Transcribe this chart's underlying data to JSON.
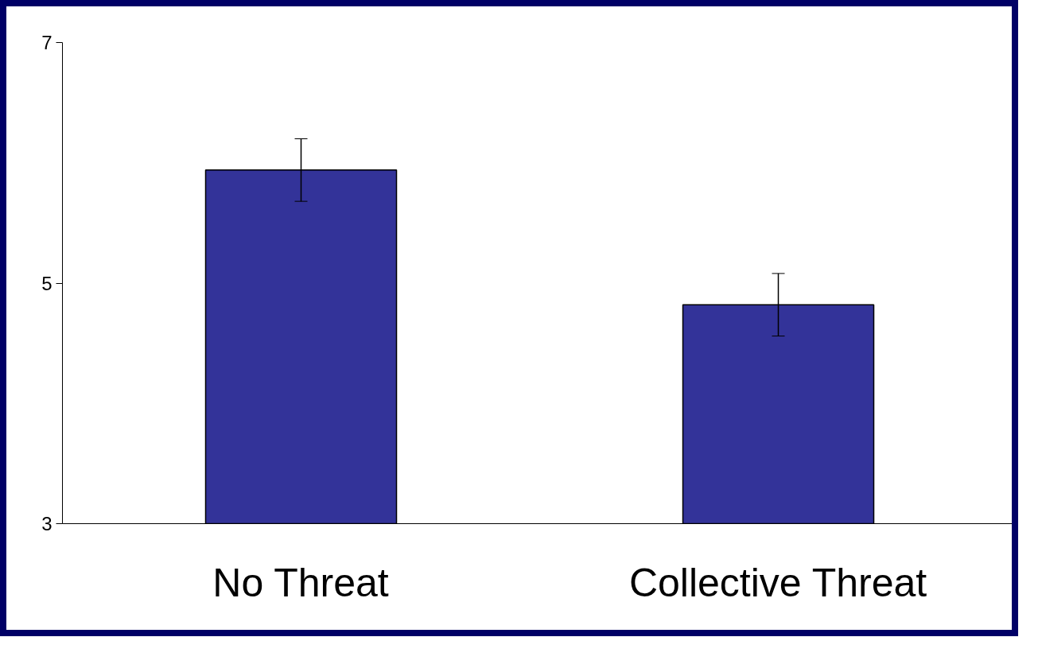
{
  "chart_data": {
    "type": "bar",
    "categories": [
      "No Threat",
      "Collective Threat"
    ],
    "values": [
      5.94,
      4.82
    ],
    "errors": [
      0.26,
      0.26
    ],
    "color": "#333399",
    "ylim": [
      3,
      7
    ],
    "yticks": [
      3,
      5,
      7
    ],
    "grid": false
  }
}
